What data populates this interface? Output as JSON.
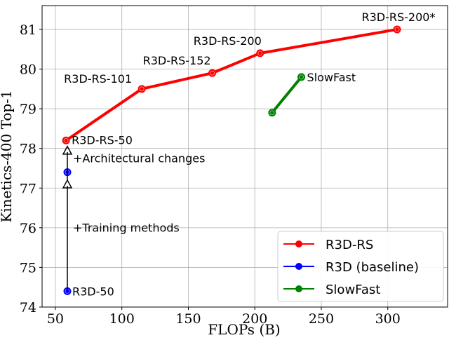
{
  "chart_data": {
    "type": "line",
    "xlabel": "FLOPs (B)",
    "ylabel": "Kinetics-400 Top-1",
    "xlim": [
      40,
      345
    ],
    "ylim": [
      74,
      81.6
    ],
    "xticks": [
      50,
      100,
      150,
      200,
      250,
      300
    ],
    "yticks": [
      74,
      75,
      76,
      77,
      78,
      79,
      80,
      81
    ],
    "grid": true,
    "legend_position": "lower-right",
    "series": [
      {
        "name": "R3D-RS",
        "color": "#ff0000",
        "x": [
          58,
          115,
          168,
          204,
          307
        ],
        "y": [
          78.2,
          79.5,
          79.9,
          80.4,
          81.0
        ],
        "point_labels": [
          "R3D-RS-50",
          "R3D-RS-101",
          "R3D-RS-152",
          "R3D-RS-200",
          "R3D-RS-200*"
        ]
      },
      {
        "name": "R3D (baseline)",
        "color": "#0000ff",
        "x": [
          59,
          59
        ],
        "y": [
          74.4,
          77.4
        ],
        "point_labels": [
          "R3D-50",
          ""
        ]
      },
      {
        "name": "SlowFast",
        "color": "#008000",
        "x": [
          213,
          235
        ],
        "y": [
          78.9,
          79.8
        ],
        "point_labels": [
          "",
          "SlowFast"
        ]
      }
    ],
    "arrows": [
      {
        "from": [
          59,
          74.4
        ],
        "to": [
          59,
          77.2
        ],
        "label": "+Training methods"
      },
      {
        "from": [
          59,
          77.2
        ],
        "to": [
          59,
          78.05
        ],
        "label": "+Architectural changes"
      }
    ]
  }
}
